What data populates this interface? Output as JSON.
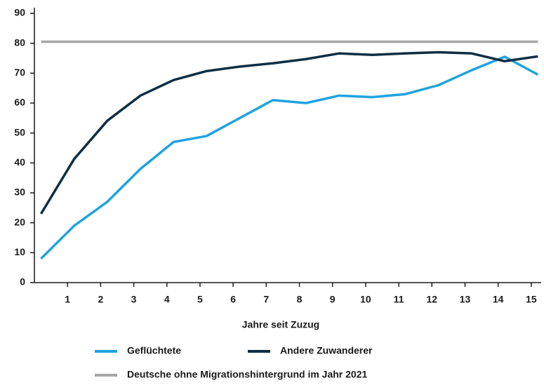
{
  "chart_data": {
    "type": "line",
    "x_label": "Jahre seit Zuzug",
    "x": [
      0.2,
      1.2,
      2.2,
      3.2,
      4.2,
      5.2,
      6.2,
      7.2,
      8.2,
      9.2,
      10.2,
      11.2,
      12.2,
      13.2,
      14.2,
      15.2
    ],
    "series": [
      {
        "name": "Geflüchtete",
        "color": "#1fa3e0",
        "values": [
          8,
          19,
          27,
          38,
          47,
          49,
          55,
          61,
          60,
          62.5,
          62,
          63,
          66,
          71,
          75.5,
          69.5
        ]
      },
      {
        "name": "Andere Zuwanderer",
        "color": "#0e2f44",
        "values": [
          23,
          41.3,
          54.1,
          62.5,
          67.7,
          70.7,
          72.2,
          73.3,
          74.7,
          76.6,
          76.1,
          76.6,
          77,
          76.6,
          74,
          75.6
        ]
      }
    ],
    "reference": {
      "name": "Deutsche ohne Migrationshintergrund im Jahr 2021",
      "value": 80.5,
      "color": "#a6a6a6"
    },
    "xlim": [
      0,
      15.3
    ],
    "xticks": [
      1,
      2,
      3,
      4,
      5,
      6,
      7,
      8,
      9,
      10,
      11,
      12,
      13,
      14,
      15
    ],
    "ylim": [
      0,
      90
    ],
    "yticks": [
      0,
      10,
      20,
      30,
      40,
      50,
      60,
      70,
      80,
      90
    ],
    "grid": false
  }
}
